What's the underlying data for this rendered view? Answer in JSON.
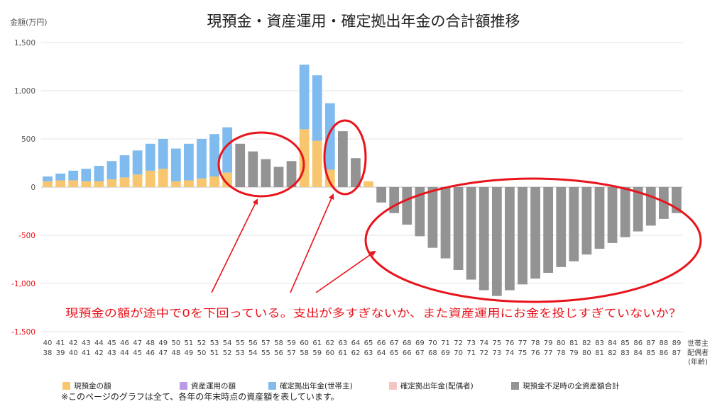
{
  "chart_data": {
    "type": "bar",
    "title": "現預金・資産運用・確定拠出年金の合計額推移",
    "ylabel": "金額(万円)",
    "ylim": [
      -1500,
      1500
    ],
    "yticks": [
      "1,500",
      "1,000",
      "500",
      "0",
      "-500",
      "-1,000",
      "-1,500"
    ],
    "x_row1": [
      "40",
      "41",
      "42",
      "43",
      "44",
      "45",
      "46",
      "47",
      "48",
      "49",
      "50",
      "51",
      "52",
      "53",
      "54",
      "55",
      "56",
      "57",
      "58",
      "59",
      "60",
      "61",
      "62",
      "63",
      "64",
      "65",
      "66",
      "67",
      "68",
      "69",
      "70",
      "71",
      "72",
      "73",
      "74",
      "75",
      "76",
      "77",
      "78",
      "79",
      "80",
      "81",
      "82",
      "83",
      "84",
      "85",
      "86",
      "87",
      "88",
      "89"
    ],
    "x_row2": [
      "38",
      "39",
      "40",
      "41",
      "42",
      "43",
      "44",
      "45",
      "46",
      "47",
      "48",
      "49",
      "50",
      "51",
      "52",
      "53",
      "54",
      "55",
      "56",
      "57",
      "58",
      "59",
      "60",
      "61",
      "62",
      "63",
      "64",
      "65",
      "66",
      "67",
      "68",
      "69",
      "70",
      "71",
      "72",
      "73",
      "74",
      "75",
      "76",
      "77",
      "78",
      "79",
      "80",
      "81",
      "82",
      "83",
      "84",
      "85",
      "86",
      "87"
    ],
    "x_label_lines": [
      "世帯主",
      "配偶者",
      "(年齢)"
    ],
    "series": [
      {
        "name": "現預金の額",
        "color": "#F7C66E",
        "values": [
          60,
          70,
          70,
          60,
          60,
          80,
          100,
          130,
          170,
          190,
          60,
          70,
          90,
          110,
          150,
          0,
          0,
          0,
          0,
          0,
          600,
          480,
          180,
          0,
          0,
          60,
          0,
          0,
          0,
          0,
          0,
          0,
          0,
          0,
          0,
          0,
          0,
          0,
          0,
          0,
          0,
          0,
          0,
          0,
          0,
          0,
          0,
          0,
          0,
          0
        ]
      },
      {
        "name": "資産運用の額",
        "color": "#B99BE6",
        "values": [
          0,
          0,
          0,
          0,
          0,
          0,
          0,
          0,
          0,
          0,
          0,
          0,
          0,
          0,
          0,
          0,
          0,
          0,
          0,
          0,
          0,
          0,
          0,
          0,
          0,
          0,
          0,
          0,
          0,
          0,
          0,
          0,
          0,
          0,
          0,
          0,
          0,
          0,
          0,
          0,
          0,
          0,
          0,
          0,
          0,
          0,
          0,
          0,
          0,
          0
        ]
      },
      {
        "name": "確定拠出年金(世帯主)",
        "color": "#7FBBEE",
        "values": [
          50,
          70,
          100,
          130,
          160,
          190,
          230,
          250,
          280,
          310,
          340,
          380,
          410,
          440,
          470,
          0,
          0,
          0,
          0,
          0,
          670,
          680,
          690,
          0,
          0,
          0,
          0,
          0,
          0,
          0,
          0,
          0,
          0,
          0,
          0,
          0,
          0,
          0,
          0,
          0,
          0,
          0,
          0,
          0,
          0,
          0,
          0,
          0,
          0,
          0
        ]
      },
      {
        "name": "確定拠出年金(配偶者)",
        "color": "#F7C4C4",
        "values": [
          0,
          0,
          0,
          0,
          0,
          0,
          0,
          0,
          0,
          0,
          0,
          0,
          0,
          0,
          0,
          0,
          0,
          0,
          0,
          0,
          0,
          0,
          0,
          0,
          0,
          0,
          0,
          0,
          0,
          0,
          0,
          0,
          0,
          0,
          0,
          0,
          0,
          0,
          0,
          0,
          0,
          0,
          0,
          0,
          0,
          0,
          0,
          0,
          0,
          0
        ]
      },
      {
        "name": "現預金不足時の全資産額合計",
        "color": "#939393",
        "values": [
          0,
          0,
          0,
          0,
          0,
          0,
          0,
          0,
          0,
          0,
          0,
          0,
          0,
          0,
          0,
          450,
          370,
          290,
          210,
          270,
          0,
          0,
          0,
          580,
          300,
          0,
          -160,
          -270,
          -390,
          -510,
          -630,
          -740,
          -860,
          -960,
          -1070,
          -1130,
          -1070,
          -1010,
          -950,
          -890,
          -830,
          -770,
          -700,
          -640,
          -580,
          -520,
          -460,
          -400,
          -330,
          -270
        ]
      }
    ],
    "legend_placement": "bottom",
    "grid": true,
    "annotation": "現預金の額が途中で0を下回っている。支出が多すぎないか、また資産運用にお金を投じすぎていないか？",
    "annotation_color": "#E8141C"
  },
  "footnote": "※このページのグラフは全て、各年の年末時点の資産額を表しています。"
}
